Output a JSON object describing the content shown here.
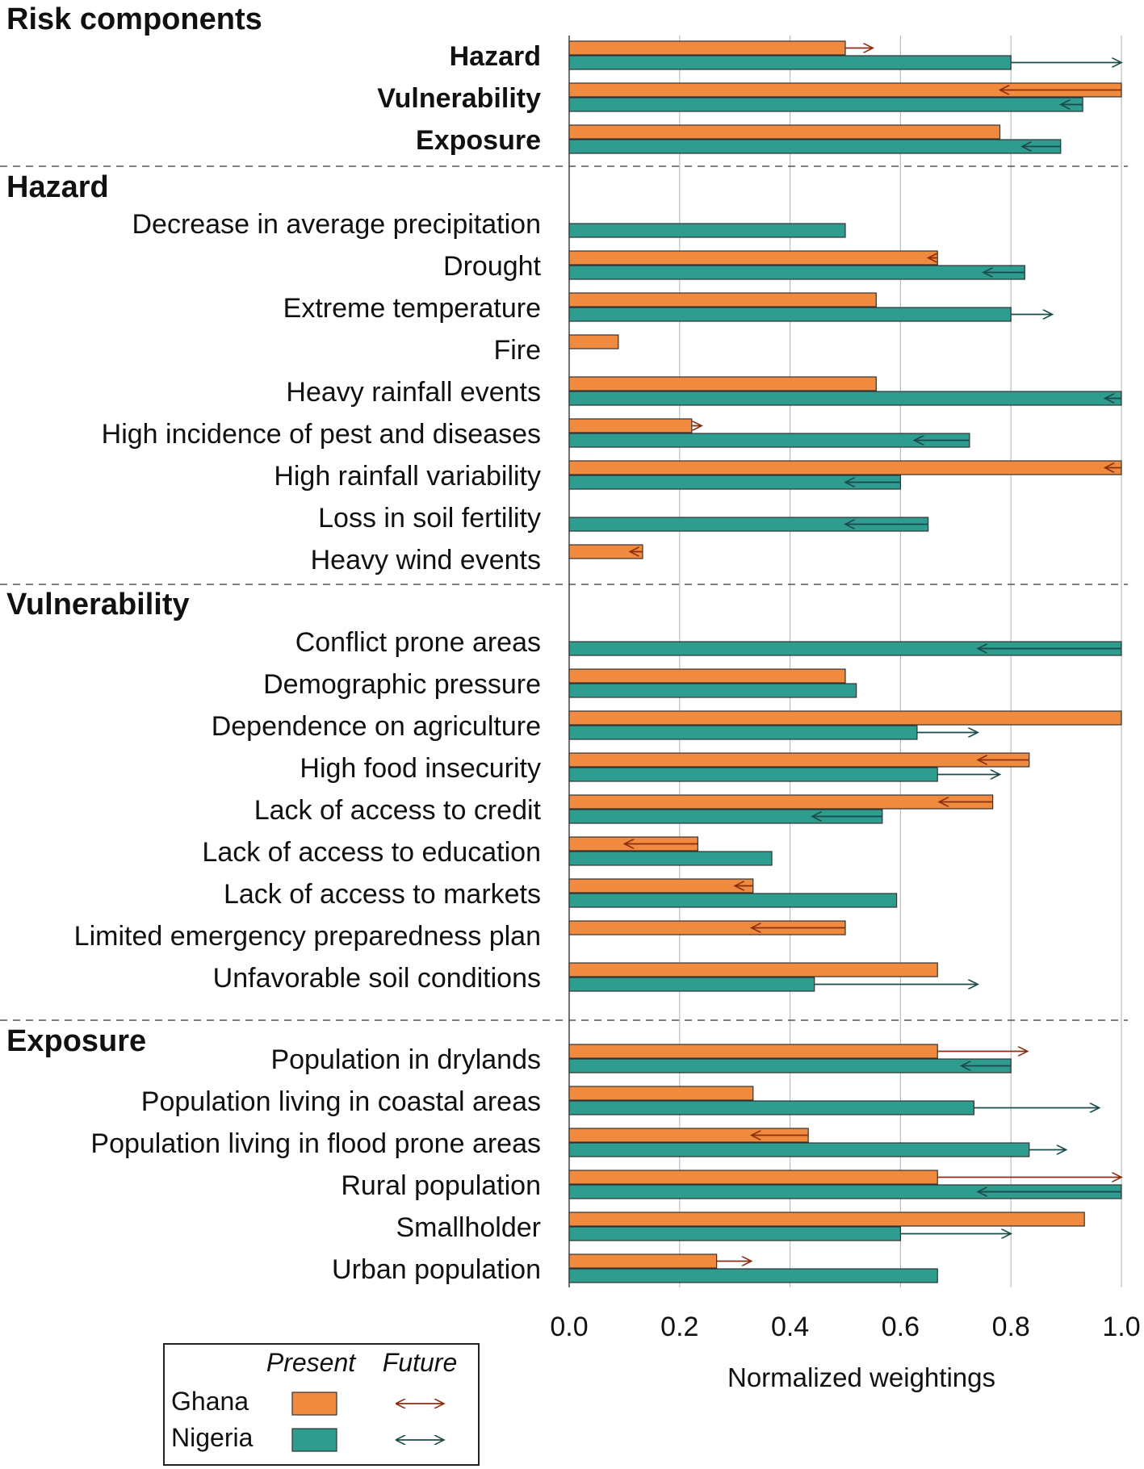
{
  "chart_data": {
    "type": "bar",
    "orientation": "horizontal",
    "xlabel": "Normalized weightings",
    "xlim": [
      0,
      1
    ],
    "xticks": [
      "0.0",
      "0.2",
      "0.4",
      "0.6",
      "0.8",
      "1.0"
    ],
    "grid": true,
    "legend": {
      "present_header": "Present",
      "future_header": "Future",
      "entries": [
        {
          "name": "Ghana",
          "bar_color": "#F08A3E",
          "arrow_color": "#8B2E0F"
        },
        {
          "name": "Nigeria",
          "bar_color": "#2E9C8F",
          "arrow_color": "#1B4A4A"
        }
      ],
      "placement": "bottom-left"
    },
    "colors": {
      "ghana_bar": "#F08A3E",
      "nigeria_bar": "#2E9C8F",
      "ghana_arrow": "#8B2E0F",
      "nigeria_arrow": "#1B4A4A",
      "bar_edge": "#333333"
    },
    "sections": [
      {
        "title": "Risk components",
        "rows": [
          {
            "label": "Hazard",
            "bold": true,
            "ghana_present": 0.5,
            "ghana_future": 0.55,
            "nigeria_present": 0.8,
            "nigeria_future": 1.0
          },
          {
            "label": "Vulnerability",
            "bold": true,
            "ghana_present": 1.0,
            "ghana_future": 0.78,
            "nigeria_present": 0.93,
            "nigeria_future": 0.89
          },
          {
            "label": "Exposure",
            "bold": true,
            "ghana_present": 0.78,
            "ghana_future": null,
            "nigeria_present": 0.89,
            "nigeria_future": 0.82
          }
        ]
      },
      {
        "title": "Hazard",
        "rows": [
          {
            "label": "Decrease in average precipitation",
            "ghana_present": null,
            "ghana_future": null,
            "nigeria_present": 0.5,
            "nigeria_future": null
          },
          {
            "label": "Drought",
            "ghana_present": 0.667,
            "ghana_future": 0.65,
            "nigeria_present": 0.825,
            "nigeria_future": 0.75
          },
          {
            "label": "Extreme temperature",
            "ghana_present": 0.556,
            "ghana_future": null,
            "nigeria_present": 0.8,
            "nigeria_future": 0.875
          },
          {
            "label": "Fire",
            "ghana_present": 0.089,
            "ghana_future": null,
            "nigeria_present": null,
            "nigeria_future": null
          },
          {
            "label": "Heavy rainfall events",
            "ghana_present": 0.556,
            "ghana_future": null,
            "nigeria_present": 1.0,
            "nigeria_future": 0.97
          },
          {
            "label": "High incidence of pest and diseases",
            "ghana_present": 0.222,
            "ghana_future": 0.24,
            "nigeria_present": 0.725,
            "nigeria_future": 0.625
          },
          {
            "label": "High rainfall variability",
            "ghana_present": 1.0,
            "ghana_future": 0.97,
            "nigeria_present": 0.6,
            "nigeria_future": 0.5
          },
          {
            "label": "Loss in soil fertility",
            "ghana_present": null,
            "ghana_future": null,
            "nigeria_present": 0.65,
            "nigeria_future": 0.5
          },
          {
            "label": "Heavy wind events",
            "ghana_present": 0.133,
            "ghana_future": 0.11,
            "nigeria_present": null,
            "nigeria_future": null
          }
        ]
      },
      {
        "title": "Vulnerability",
        "rows": [
          {
            "label": "Conflict prone areas",
            "ghana_present": null,
            "ghana_future": null,
            "nigeria_present": 1.0,
            "nigeria_future": 0.74
          },
          {
            "label": "Demographic pressure",
            "ghana_present": 0.5,
            "ghana_future": null,
            "nigeria_present": 0.52,
            "nigeria_future": null
          },
          {
            "label": "Dependence on agriculture",
            "ghana_present": 1.0,
            "ghana_future": null,
            "nigeria_present": 0.63,
            "nigeria_future": 0.74
          },
          {
            "label": "High food insecurity",
            "ghana_present": 0.833,
            "ghana_future": 0.74,
            "nigeria_present": 0.667,
            "nigeria_future": 0.78
          },
          {
            "label": "Lack of access to credit",
            "ghana_present": 0.767,
            "ghana_future": 0.67,
            "nigeria_present": 0.567,
            "nigeria_future": 0.44
          },
          {
            "label": "Lack of access to education",
            "ghana_present": 0.233,
            "ghana_future": 0.1,
            "nigeria_present": 0.367,
            "nigeria_future": null
          },
          {
            "label": "Lack of access to markets",
            "ghana_present": 0.333,
            "ghana_future": 0.3,
            "nigeria_present": 0.593,
            "nigeria_future": null
          },
          {
            "label": "Limited emergency preparedness plan",
            "ghana_present": 0.5,
            "ghana_future": 0.33,
            "nigeria_present": null,
            "nigeria_future": null
          },
          {
            "label": "Unfavorable soil conditions",
            "ghana_present": 0.667,
            "ghana_future": null,
            "nigeria_present": 0.444,
            "nigeria_future": 0.74
          }
        ]
      },
      {
        "title": "Exposure",
        "rows": [
          {
            "label": "Population in drylands",
            "ghana_present": 0.667,
            "ghana_future": 0.83,
            "nigeria_present": 0.8,
            "nigeria_future": 0.71
          },
          {
            "label": "Population living in coastal areas",
            "ghana_present": 0.333,
            "ghana_future": null,
            "nigeria_present": 0.733,
            "nigeria_future": 0.96
          },
          {
            "label": "Population living in flood prone areas",
            "ghana_present": 0.433,
            "ghana_future": 0.33,
            "nigeria_present": 0.833,
            "nigeria_future": 0.9
          },
          {
            "label": "Rural population",
            "ghana_present": 0.667,
            "ghana_future": 1.0,
            "nigeria_present": 1.0,
            "nigeria_future": 0.74
          },
          {
            "label": "Smallholder",
            "ghana_present": 0.933,
            "ghana_future": null,
            "nigeria_present": 0.6,
            "nigeria_future": 0.8
          },
          {
            "label": "Urban population",
            "ghana_present": 0.267,
            "ghana_future": 0.33,
            "nigeria_present": 0.667,
            "nigeria_future": null
          }
        ]
      }
    ]
  }
}
